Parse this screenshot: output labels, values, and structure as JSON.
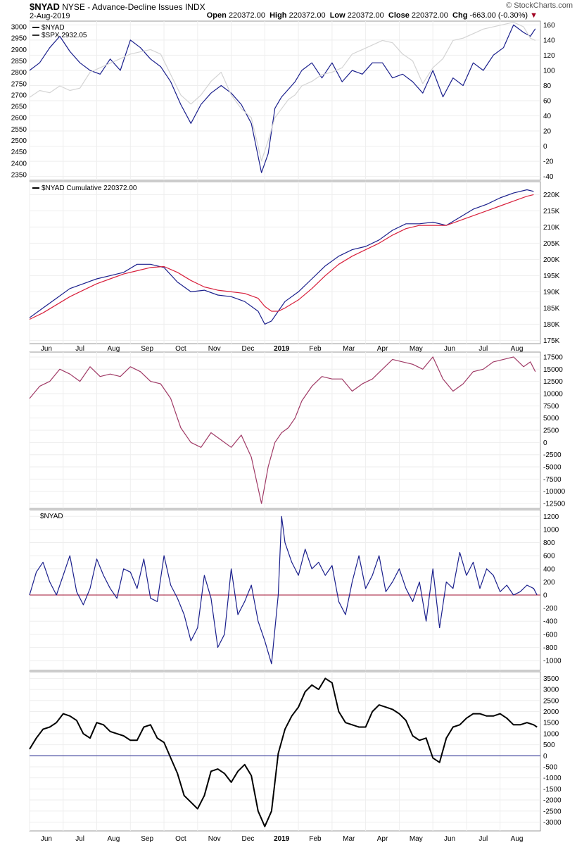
{
  "header": {
    "symbol": "$NYAD",
    "description": "NYSE - Advance-Decline Issues INDX",
    "date": "2-Aug-2019",
    "open_label": "Open",
    "open": "220372.00",
    "high_label": "High",
    "high": "220372.00",
    "low_label": "Low",
    "low": "220372.00",
    "close_label": "Close",
    "close": "220372.00",
    "chg_label": "Chg",
    "chg": "-663.00 (-0.30%)",
    "chg_arrow": "▼",
    "watermark": "© StockCharts.com"
  },
  "colors": {
    "navy": "#1a1f8c",
    "gray": "#d4d4d4",
    "red": "#d8203c",
    "maroon": "#a03a66",
    "black": "#000000",
    "zero_red": "#a01030",
    "zero_navy": "#1a1f8c"
  },
  "time_axis": {
    "month_labels": [
      "Jun",
      "Jul",
      "Aug",
      "Sep",
      "Oct",
      "Nov",
      "Dec",
      "2019",
      "Feb",
      "Mar",
      "Apr",
      "May",
      "Jun",
      "Jul",
      "Aug"
    ],
    "month_index": [
      0.5,
      1.5,
      2.5,
      3.5,
      4.5,
      5.5,
      6.5,
      7.5,
      8.5,
      9.5,
      10.5,
      11.5,
      12.5,
      13.5,
      14.5
    ]
  },
  "chart_data": [
    {
      "type": "line",
      "title": "",
      "legend": [
        "$NYAD",
        "$SPX 2932.05"
      ],
      "ylim_left": [
        2325,
        3025
      ],
      "yticks_left": [
        "3000",
        "2950",
        "2900",
        "2850",
        "2800",
        "2750",
        "2700",
        "2650",
        "2600",
        "2550",
        "2500",
        "2450",
        "2400",
        "2350"
      ],
      "ylim_right": [
        -45,
        165
      ],
      "yticks_right": [
        "160",
        "140",
        "120",
        "100",
        "80",
        "60",
        "40",
        "20",
        "0",
        "-20",
        "-40"
      ],
      "series": [
        {
          "name": "$NYAD",
          "axis": "right",
          "x": [
            0,
            0.3,
            0.6,
            0.9,
            1.2,
            1.5,
            1.8,
            2.1,
            2.4,
            2.7,
            3.0,
            3.3,
            3.6,
            3.9,
            4.2,
            4.5,
            4.8,
            5.1,
            5.4,
            5.7,
            6.0,
            6.3,
            6.6,
            6.9,
            7.1,
            7.3,
            7.5,
            7.7,
            7.9,
            8.1,
            8.4,
            8.7,
            9.0,
            9.3,
            9.6,
            9.9,
            10.2,
            10.5,
            10.8,
            11.1,
            11.4,
            11.7,
            12.0,
            12.3,
            12.6,
            12.9,
            13.2,
            13.5,
            13.8,
            14.1,
            14.4,
            14.7,
            14.9,
            15.05
          ],
          "values": [
            100,
            110,
            130,
            145,
            125,
            110,
            100,
            95,
            115,
            100,
            140,
            130,
            115,
            105,
            85,
            55,
            30,
            55,
            70,
            80,
            70,
            55,
            30,
            -35,
            -10,
            50,
            65,
            75,
            85,
            100,
            110,
            90,
            110,
            85,
            100,
            95,
            110,
            110,
            90,
            95,
            85,
            70,
            100,
            65,
            90,
            80,
            110,
            100,
            120,
            130,
            160,
            150,
            145,
            155
          ]
        },
        {
          "name": "$SPX",
          "axis": "left",
          "x": [
            0,
            0.3,
            0.6,
            0.9,
            1.2,
            1.5,
            1.8,
            2.1,
            2.4,
            2.7,
            3.0,
            3.3,
            3.6,
            3.9,
            4.2,
            4.5,
            4.8,
            5.1,
            5.4,
            5.7,
            6.0,
            6.3,
            6.6,
            6.9,
            7.1,
            7.3,
            7.5,
            7.7,
            7.9,
            8.1,
            8.4,
            8.7,
            9.0,
            9.3,
            9.6,
            9.9,
            10.2,
            10.5,
            10.8,
            11.1,
            11.4,
            11.7,
            12.0,
            12.3,
            12.6,
            12.9,
            13.2,
            13.5,
            13.8,
            14.1,
            14.4,
            14.7,
            14.9,
            15.05
          ],
          "values": [
            2690,
            2720,
            2710,
            2740,
            2720,
            2730,
            2800,
            2820,
            2840,
            2860,
            2880,
            2890,
            2900,
            2880,
            2790,
            2700,
            2660,
            2700,
            2760,
            2800,
            2700,
            2640,
            2600,
            2410,
            2500,
            2600,
            2640,
            2680,
            2700,
            2740,
            2760,
            2790,
            2800,
            2820,
            2880,
            2900,
            2920,
            2940,
            2930,
            2880,
            2850,
            2750,
            2820,
            2860,
            2940,
            2950,
            2970,
            2990,
            3000,
            3010,
            3020,
            3000,
            2950,
            2940
          ]
        }
      ]
    },
    {
      "type": "line",
      "title": "",
      "legend": [
        "$NYAD Cumulative 220372.00"
      ],
      "ylim": [
        174000,
        224000
      ],
      "yticks": [
        "220K",
        "215K",
        "210K",
        "205K",
        "200K",
        "195K",
        "190K",
        "185K",
        "180K",
        "175K"
      ],
      "series": [
        {
          "name": "$NYAD Cumulative",
          "color": "navy",
          "x": [
            0,
            0.4,
            0.8,
            1.2,
            1.6,
            2.0,
            2.4,
            2.8,
            3.2,
            3.6,
            4.0,
            4.4,
            4.8,
            5.2,
            5.6,
            6.0,
            6.4,
            6.8,
            7.0,
            7.2,
            7.4,
            7.6,
            8.0,
            8.4,
            8.8,
            9.2,
            9.6,
            10.0,
            10.4,
            10.8,
            11.2,
            11.6,
            12.0,
            12.4,
            12.8,
            13.2,
            13.6,
            14.0,
            14.4,
            14.8,
            15.0
          ],
          "values": [
            182000,
            185000,
            188000,
            191000,
            192500,
            194000,
            195000,
            196000,
            198500,
            198500,
            197500,
            193000,
            190000,
            190500,
            189000,
            188500,
            187000,
            184000,
            180000,
            181000,
            184000,
            187000,
            190000,
            194000,
            198000,
            201000,
            203000,
            204000,
            206000,
            209000,
            211000,
            211000,
            211500,
            210500,
            213000,
            215500,
            217000,
            219000,
            220500,
            221500,
            221000
          ]
        },
        {
          "name": "Moving Average",
          "color": "red",
          "x": [
            0,
            0.4,
            0.8,
            1.2,
            1.6,
            2.0,
            2.4,
            2.8,
            3.2,
            3.6,
            4.0,
            4.4,
            4.8,
            5.2,
            5.6,
            6.0,
            6.4,
            6.8,
            7.0,
            7.2,
            7.4,
            7.6,
            8.0,
            8.4,
            8.8,
            9.2,
            9.6,
            10.0,
            10.4,
            10.8,
            11.2,
            11.6,
            12.0,
            12.4,
            12.8,
            13.2,
            13.6,
            14.0,
            14.4,
            14.8,
            15.0
          ],
          "values": [
            181500,
            183500,
            186000,
            188500,
            190500,
            192500,
            194000,
            195500,
            196500,
            197500,
            197800,
            196000,
            193500,
            191500,
            190500,
            190000,
            189500,
            188000,
            185500,
            184000,
            184000,
            185000,
            187500,
            191000,
            195000,
            198500,
            201000,
            203000,
            205000,
            207500,
            209500,
            210500,
            210500,
            210500,
            212000,
            213500,
            215000,
            216500,
            218000,
            219500,
            220000
          ]
        }
      ]
    },
    {
      "type": "line",
      "title": "",
      "legend": [],
      "ylim": [
        -13500,
        18500
      ],
      "yticks": [
        "17500",
        "15000",
        "12500",
        "10000",
        "7500",
        "5000",
        "2500",
        "0",
        "-2500",
        "-5000",
        "-7500",
        "-10000",
        "-12500"
      ],
      "series": [
        {
          "name": "",
          "color": "maroon",
          "x": [
            0,
            0.3,
            0.6,
            0.9,
            1.2,
            1.5,
            1.8,
            2.1,
            2.4,
            2.7,
            3.0,
            3.3,
            3.6,
            3.9,
            4.2,
            4.5,
            4.8,
            5.1,
            5.4,
            5.7,
            6.0,
            6.3,
            6.6,
            6.9,
            7.1,
            7.3,
            7.5,
            7.7,
            7.9,
            8.1,
            8.4,
            8.7,
            9.0,
            9.3,
            9.6,
            9.9,
            10.2,
            10.5,
            10.8,
            11.1,
            11.4,
            11.7,
            12.0,
            12.3,
            12.6,
            12.9,
            13.2,
            13.5,
            13.8,
            14.1,
            14.4,
            14.7,
            14.9,
            15.05
          ],
          "values": [
            9000,
            11500,
            12500,
            15000,
            14000,
            12500,
            15500,
            13500,
            14000,
            13500,
            15500,
            14500,
            12500,
            12000,
            9000,
            3000,
            0,
            -1000,
            2000,
            500,
            -1000,
            1500,
            -3000,
            -12500,
            -5000,
            0,
            2000,
            3000,
            5000,
            8500,
            11500,
            13500,
            13000,
            13000,
            10500,
            12000,
            13000,
            15000,
            17000,
            16500,
            16000,
            15000,
            17500,
            13000,
            10500,
            12000,
            14500,
            15000,
            16500,
            17000,
            17500,
            15500,
            16500,
            14500
          ]
        }
      ]
    },
    {
      "type": "line",
      "title": "",
      "legend": [
        "$NYAD"
      ],
      "ylim": [
        -1150,
        1300
      ],
      "yticks": [
        "1200",
        "1000",
        "800",
        "600",
        "400",
        "200",
        "0",
        "-200",
        "-400",
        "-600",
        "-800",
        "-1000"
      ],
      "series": [
        {
          "name": "$NYAD",
          "color": "navy",
          "x": [
            0,
            0.2,
            0.4,
            0.6,
            0.8,
            1.0,
            1.2,
            1.4,
            1.6,
            1.8,
            2.0,
            2.2,
            2.4,
            2.6,
            2.8,
            3.0,
            3.2,
            3.4,
            3.6,
            3.8,
            4.0,
            4.2,
            4.4,
            4.6,
            4.8,
            5.0,
            5.2,
            5.4,
            5.6,
            5.8,
            6.0,
            6.2,
            6.4,
            6.6,
            6.8,
            7.0,
            7.2,
            7.4,
            7.5,
            7.6,
            7.8,
            8.0,
            8.2,
            8.4,
            8.6,
            8.8,
            9.0,
            9.2,
            9.4,
            9.6,
            9.8,
            10.0,
            10.2,
            10.4,
            10.6,
            10.8,
            11.0,
            11.2,
            11.4,
            11.6,
            11.8,
            12.0,
            12.2,
            12.4,
            12.6,
            12.8,
            13.0,
            13.2,
            13.4,
            13.6,
            13.8,
            14.0,
            14.2,
            14.4,
            14.6,
            14.8,
            15.0,
            15.1
          ],
          "values": [
            0,
            350,
            500,
            200,
            0,
            300,
            600,
            50,
            -150,
            100,
            550,
            300,
            100,
            -50,
            400,
            350,
            100,
            550,
            -50,
            -100,
            600,
            150,
            -50,
            -300,
            -700,
            -500,
            300,
            -50,
            -800,
            -600,
            400,
            -300,
            -100,
            150,
            -400,
            -700,
            -1050,
            0,
            1200,
            800,
            500,
            300,
            700,
            400,
            500,
            300,
            450,
            -100,
            -300,
            200,
            600,
            100,
            300,
            600,
            50,
            200,
            400,
            100,
            -100,
            200,
            -400,
            400,
            -500,
            200,
            100,
            650,
            300,
            500,
            100,
            400,
            300,
            50,
            150,
            0,
            50,
            150,
            100,
            0
          ]
        }
      ]
    },
    {
      "type": "line",
      "title": "",
      "legend": [],
      "ylim": [
        -3400,
        3800
      ],
      "yticks": [
        "3500",
        "3000",
        "2500",
        "2000",
        "1500",
        "1000",
        "500",
        "0",
        "-500",
        "-1000",
        "-1500",
        "-2000",
        "-2500",
        "-3000"
      ],
      "series": [
        {
          "name": "",
          "color": "black",
          "x": [
            0,
            0.2,
            0.4,
            0.6,
            0.8,
            1.0,
            1.2,
            1.4,
            1.6,
            1.8,
            2.0,
            2.2,
            2.4,
            2.6,
            2.8,
            3.0,
            3.2,
            3.4,
            3.6,
            3.8,
            4.0,
            4.2,
            4.4,
            4.6,
            4.8,
            5.0,
            5.2,
            5.4,
            5.6,
            5.8,
            6.0,
            6.2,
            6.4,
            6.6,
            6.8,
            7.0,
            7.2,
            7.4,
            7.6,
            7.8,
            8.0,
            8.2,
            8.4,
            8.6,
            8.8,
            9.0,
            9.2,
            9.4,
            9.6,
            9.8,
            10.0,
            10.2,
            10.4,
            10.6,
            10.8,
            11.0,
            11.2,
            11.4,
            11.6,
            11.8,
            12.0,
            12.2,
            12.4,
            12.6,
            12.8,
            13.0,
            13.2,
            13.4,
            13.6,
            13.8,
            14.0,
            14.2,
            14.4,
            14.6,
            14.8,
            15.0,
            15.1
          ],
          "values": [
            300,
            800,
            1200,
            1300,
            1500,
            1900,
            1800,
            1600,
            1000,
            800,
            1500,
            1400,
            1100,
            1000,
            900,
            700,
            700,
            1300,
            1400,
            800,
            600,
            -100,
            -800,
            -1800,
            -2100,
            -2400,
            -1800,
            -700,
            -600,
            -800,
            -1200,
            -700,
            -400,
            -900,
            -2500,
            -3200,
            -2500,
            100,
            1200,
            1800,
            2200,
            2900,
            3200,
            3000,
            3500,
            3300,
            2000,
            1500,
            1400,
            1300,
            1300,
            2000,
            2300,
            2200,
            2100,
            1900,
            1600,
            900,
            700,
            800,
            -100,
            -300,
            800,
            1300,
            1400,
            1700,
            1900,
            1900,
            1800,
            1800,
            1900,
            1700,
            1400,
            1400,
            1500,
            1400,
            1300
          ]
        }
      ]
    }
  ]
}
